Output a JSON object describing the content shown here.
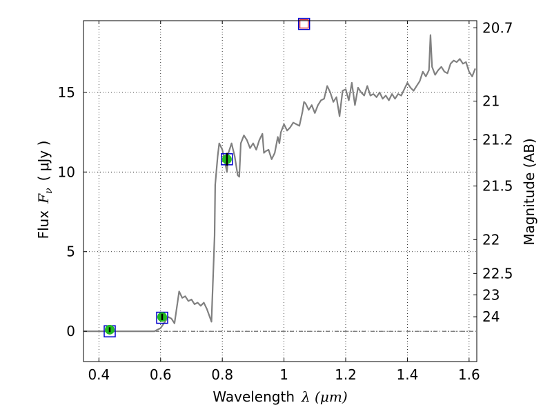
{
  "chart_data": {
    "type": "line",
    "xlabel_prefix": "Wavelength",
    "xlabel_math": "λ (μm)",
    "ylabel_prefix": "Flux",
    "ylabel_math": "F",
    "ylabel_sub": "ν",
    "ylabel_unit": "( μJy )",
    "y2label": "Magnitude (AB)",
    "xlim": [
      0.35,
      1.625
    ],
    "ylim": [
      -1.9,
      19.5
    ],
    "grid": true,
    "x_ticks": [
      0.4,
      0.6,
      0.8,
      1.0,
      1.2,
      1.4,
      1.6
    ],
    "x_tick_labels": [
      "0.4",
      "0.6",
      "0.8",
      "1",
      "1.2",
      "1.4",
      "1.6"
    ],
    "y_ticks": [
      0,
      5,
      10,
      15
    ],
    "y_tick_labels": [
      "0",
      "5",
      "10",
      "15"
    ],
    "mag_ticks": [
      20.7,
      21,
      21.2,
      21.5,
      22,
      22.5,
      23,
      24
    ],
    "mag_tick_labels": [
      "20.7",
      "21",
      "21.2",
      "21.5",
      "22",
      "22.5",
      "23",
      "24"
    ],
    "zero_line": 0,
    "colors": {
      "model_line": "#808080",
      "obs_fill": "#22bb22",
      "model_box": "#0000cc",
      "upper_fill": "#ffffff",
      "upper_edge": "#dd2222"
    },
    "series": [
      {
        "kind": "model_sed",
        "x": [
          0.35,
          0.58,
          0.6,
          0.625,
          0.635,
          0.645,
          0.66,
          0.67,
          0.68,
          0.69,
          0.7,
          0.71,
          0.72,
          0.73,
          0.74,
          0.75,
          0.765,
          0.775,
          0.777,
          0.785,
          0.79,
          0.8,
          0.81,
          0.815,
          0.82,
          0.83,
          0.84,
          0.85,
          0.855,
          0.86,
          0.87,
          0.88,
          0.89,
          0.9,
          0.91,
          0.92,
          0.93,
          0.935,
          0.94,
          0.95,
          0.96,
          0.97,
          0.98,
          0.985,
          0.99,
          1.0,
          1.01,
          1.02,
          1.03,
          1.04,
          1.05,
          1.06,
          1.065,
          1.07,
          1.08,
          1.09,
          1.1,
          1.11,
          1.12,
          1.13,
          1.14,
          1.15,
          1.16,
          1.17,
          1.18,
          1.19,
          1.2,
          1.21,
          1.22,
          1.23,
          1.24,
          1.25,
          1.26,
          1.27,
          1.28,
          1.29,
          1.3,
          1.31,
          1.32,
          1.33,
          1.34,
          1.35,
          1.36,
          1.37,
          1.38,
          1.39,
          1.4,
          1.41,
          1.42,
          1.43,
          1.44,
          1.45,
          1.46,
          1.47,
          1.475,
          1.48,
          1.49,
          1.5,
          1.51,
          1.52,
          1.53,
          1.54,
          1.55,
          1.56,
          1.57,
          1.58,
          1.59,
          1.6,
          1.61,
          1.62
        ],
        "y": [
          0,
          0,
          0.2,
          0.9,
          0.8,
          0.5,
          2.5,
          2.1,
          2.2,
          1.9,
          2.0,
          1.7,
          1.8,
          1.6,
          1.8,
          1.4,
          0.6,
          6.0,
          9.2,
          11.0,
          11.8,
          11.4,
          10.5,
          10.0,
          11.2,
          11.8,
          11.0,
          9.8,
          9.7,
          11.8,
          12.3,
          12.0,
          11.5,
          11.8,
          11.4,
          12.0,
          12.4,
          11.2,
          11.3,
          11.4,
          10.8,
          11.2,
          12.2,
          11.8,
          12.5,
          13.0,
          12.6,
          12.8,
          13.1,
          13.0,
          12.9,
          13.8,
          14.4,
          14.3,
          13.9,
          14.2,
          13.7,
          14.2,
          14.5,
          14.6,
          15.4,
          15.0,
          14.4,
          14.7,
          13.5,
          15.1,
          15.2,
          14.5,
          15.6,
          14.2,
          15.3,
          15.0,
          14.8,
          15.4,
          14.8,
          14.9,
          14.7,
          15.0,
          14.6,
          14.8,
          14.5,
          14.9,
          14.6,
          14.9,
          14.8,
          15.2,
          15.6,
          15.3,
          15.1,
          15.4,
          15.7,
          16.3,
          16.0,
          16.4,
          18.6,
          16.6,
          16.1,
          16.4,
          16.6,
          16.3,
          16.2,
          16.8,
          17.0,
          16.9,
          17.1,
          16.8,
          16.9,
          16.3,
          16.0,
          16.5
        ]
      }
    ],
    "observed": {
      "x": [
        0.435,
        0.605,
        0.815
      ],
      "y": [
        0.1,
        0.9,
        10.8
      ],
      "yerr": [
        0.15,
        0.2,
        0.4
      ]
    },
    "model_points": {
      "x": [
        0.435,
        0.605,
        0.815,
        1.065
      ],
      "y": [
        0.0,
        0.85,
        10.8,
        19.3
      ]
    },
    "upper_limits": {
      "x": [
        1.065
      ],
      "y": [
        19.3
      ]
    }
  }
}
